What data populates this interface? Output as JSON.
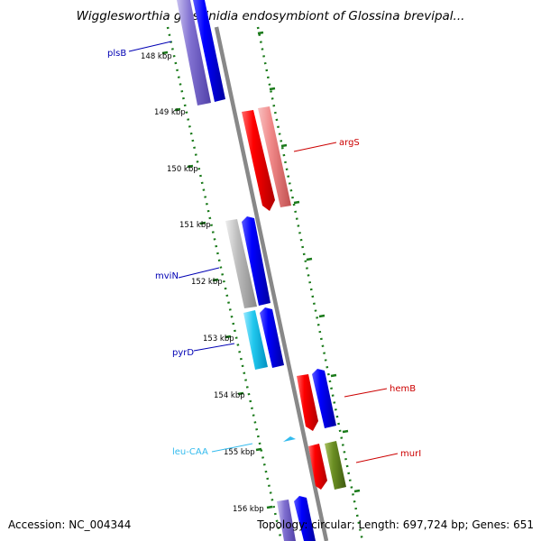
{
  "title": "Wigglesworthia glossinidia endosymbiont of Glossina brevipal...",
  "footer": {
    "accession": "Accession: NC_004344",
    "topology": "Topology: circular; Length: 697,724 bp; Genes: 651"
  },
  "kbp_labels": [
    "148 kbp",
    "149 kbp",
    "150 kbp",
    "151 kbp",
    "152 kbp",
    "153 kbp",
    "154 kbp",
    "155 kbp",
    "156 kbp"
  ],
  "genes": [
    {
      "name": "plsB",
      "color": "#0000b4"
    },
    {
      "name": "argS",
      "color": "#cc0000"
    },
    {
      "name": "mviN",
      "color": "#0000b4"
    },
    {
      "name": "pyrD",
      "color": "#0000b4"
    },
    {
      "name": "hemB",
      "color": "#cc0000"
    },
    {
      "name": "leu-CAA",
      "color": "#33bbee"
    },
    {
      "name": "murI",
      "color": "#cc0000"
    }
  ],
  "colors": {
    "backbone": "#888888",
    "tick": "#1a7a1a",
    "forward_cds": "#ff0000",
    "forward_similarity": "#f08888",
    "reverse_cds": "#0000ff",
    "reverse_similarity": "#8070d0",
    "gray_similarity": "#bbbbbb",
    "cyan_similarity": "#33ccee",
    "olive_similarity": "#6b8e23",
    "trna": "#33bbee"
  }
}
